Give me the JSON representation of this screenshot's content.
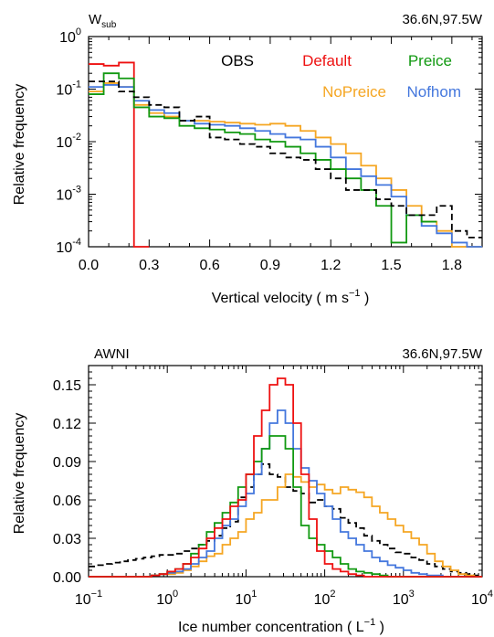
{
  "chart_data": [
    {
      "type": "line",
      "panel_label": "W",
      "panel_label_sub": "sub",
      "location": "36.6N,97.5W",
      "xlabel": "Vertical velocity ( m s",
      "xlabel_sup": "−1",
      "xlabel_tail": ")",
      "ylabel": "Relative frequency",
      "xlim": [
        0.0,
        1.95
      ],
      "ylim": [
        0.0001,
        1
      ],
      "yscale": "log",
      "x_ticks": [
        "0.0",
        "0.3",
        "0.6",
        "0.9",
        "1.2",
        "1.5",
        "1.8"
      ],
      "x_tick_values": [
        0.0,
        0.3,
        0.6,
        0.9,
        1.2,
        1.5,
        1.8
      ],
      "y_ticks": [
        {
          "base": "10",
          "exp": "0",
          "value": 1
        },
        {
          "base": "10",
          "exp": "-1",
          "value": 0.1
        },
        {
          "base": "10",
          "exp": "-2",
          "value": 0.01
        },
        {
          "base": "10",
          "exp": "-3",
          "value": 0.001
        },
        {
          "base": "10",
          "exp": "-4",
          "value": 0.0001
        }
      ],
      "legend": [
        {
          "name": "OBS",
          "color": "#000000",
          "dashed": true
        },
        {
          "name": "Default",
          "color": "#ee1111",
          "dashed": false
        },
        {
          "name": "Preice",
          "color": "#119911",
          "dashed": false
        },
        {
          "name": "NoPreice",
          "color": "#f5a623",
          "dashed": false
        },
        {
          "name": "Nofhom",
          "color": "#4477dd",
          "dashed": false
        }
      ],
      "bin_edges": [
        0.0,
        0.075,
        0.15,
        0.225,
        0.3,
        0.375,
        0.45,
        0.525,
        0.6,
        0.675,
        0.75,
        0.825,
        0.9,
        0.975,
        1.05,
        1.125,
        1.2,
        1.275,
        1.35,
        1.425,
        1.5,
        1.575,
        1.65,
        1.725,
        1.8,
        1.875,
        1.95
      ],
      "series": [
        {
          "name": "Default",
          "color": "#ee1111",
          "dashed": false,
          "values": [
            0.3,
            0.28,
            0.32,
            0.0001
          ]
        },
        {
          "name": "NoPreice",
          "color": "#f5a623",
          "dashed": false,
          "values": [
            0.09,
            0.13,
            0.11,
            0.05,
            0.035,
            0.03,
            0.025,
            0.025,
            0.024,
            0.023,
            0.022,
            0.021,
            0.022,
            0.02,
            0.016,
            0.012,
            0.009,
            0.006,
            0.0035,
            0.002,
            0.0012,
            0.0006,
            0.0003,
            0.0002,
            0.0001,
            0.0001
          ]
        },
        {
          "name": "Nofhom",
          "color": "#4477dd",
          "dashed": false,
          "values": [
            0.11,
            0.12,
            0.11,
            0.06,
            0.04,
            0.035,
            0.025,
            0.022,
            0.021,
            0.02,
            0.018,
            0.016,
            0.014,
            0.012,
            0.011,
            0.008,
            0.005,
            0.003,
            0.0022,
            0.0015,
            0.0009,
            0.0004,
            0.00025,
            0.00018,
            0.00012,
            0.0001
          ]
        },
        {
          "name": "Preice",
          "color": "#119911",
          "dashed": false,
          "values": [
            0.08,
            0.2,
            0.16,
            0.045,
            0.03,
            0.028,
            0.02,
            0.018,
            0.017,
            0.015,
            0.014,
            0.011,
            0.01,
            0.008,
            0.006,
            0.0045,
            0.003,
            0.002,
            0.0012,
            0.0006,
            0.00012,
            0.0004,
            0.0003
          ]
        },
        {
          "name": "OBS",
          "color": "#000000",
          "dashed": true,
          "values": [
            0.14,
            0.14,
            0.09,
            0.07,
            0.05,
            0.045,
            0.025,
            0.03,
            0.012,
            0.011,
            0.009,
            0.008,
            0.006,
            0.005,
            0.0045,
            0.003,
            0.002,
            0.0012,
            0.0012,
            0.0008,
            0.0006,
            0.0004,
            0.0004,
            0.0006,
            0.0002,
            0.00015
          ]
        }
      ]
    },
    {
      "type": "line",
      "panel_label": "AWNI",
      "location": "36.6N,97.5W",
      "xlabel": "Ice number concentration ( L",
      "xlabel_sup": "−1",
      "xlabel_tail": ")",
      "ylabel": "Relative frequency",
      "xscale": "log",
      "xlim": [
        0.1,
        10000
      ],
      "ylim": [
        0.0,
        0.165
      ],
      "x_ticks": [
        {
          "base": "10",
          "exp": "−1",
          "value": 0.1
        },
        {
          "base": "10",
          "exp": "0",
          "value": 1
        },
        {
          "base": "10",
          "exp": "1",
          "value": 10
        },
        {
          "base": "10",
          "exp": "2",
          "value": 100
        },
        {
          "base": "10",
          "exp": "3",
          "value": 1000
        },
        {
          "base": "10",
          "exp": "4",
          "value": 10000
        }
      ],
      "y_ticks": [
        "0.00",
        "0.03",
        "0.06",
        "0.09",
        "0.12",
        "0.15"
      ],
      "y_tick_values": [
        0.0,
        0.03,
        0.06,
        0.09,
        0.12,
        0.15
      ],
      "bin_edges_log10": [
        -1.0,
        -0.9,
        -0.8,
        -0.7,
        -0.6,
        -0.5,
        -0.4,
        -0.3,
        -0.2,
        -0.1,
        0.0,
        0.1,
        0.2,
        0.3,
        0.4,
        0.5,
        0.6,
        0.7,
        0.8,
        0.9,
        1.0,
        1.1,
        1.2,
        1.3,
        1.4,
        1.5,
        1.6,
        1.7,
        1.8,
        1.9,
        2.0,
        2.1,
        2.2,
        2.3,
        2.4,
        2.5,
        2.6,
        2.7,
        2.8,
        2.9,
        3.0,
        3.1,
        3.2,
        3.3,
        3.4,
        3.5,
        3.6,
        3.7,
        3.8,
        3.9,
        4.0
      ],
      "series": [
        {
          "name": "OBS",
          "color": "#000000",
          "dashed": true,
          "values": [
            0.008,
            0.009,
            0.01,
            0.011,
            0.012,
            0.013,
            0.014,
            0.015,
            0.016,
            0.017,
            0.017,
            0.018,
            0.02,
            0.022,
            0.025,
            0.028,
            0.032,
            0.038,
            0.043,
            0.062,
            0.07,
            0.08,
            0.088,
            0.08,
            0.078,
            0.07,
            0.067,
            0.065,
            0.058,
            0.06,
            0.055,
            0.053,
            0.046,
            0.042,
            0.038,
            0.032,
            0.028,
            0.025,
            0.022,
            0.019,
            0.018,
            0.015,
            0.013,
            0.01,
            0.008,
            0.006,
            0.004,
            0.003,
            0.002,
            0.001
          ]
        },
        {
          "name": "NoPreice",
          "color": "#f5a623",
          "dashed": false,
          "values": [
            0,
            0,
            0,
            0,
            0,
            0,
            0,
            0,
            0.001,
            0.002,
            0.002,
            0.003,
            0.005,
            0.008,
            0.012,
            0.016,
            0.018,
            0.025,
            0.03,
            0.035,
            0.045,
            0.05,
            0.06,
            0.06,
            0.07,
            0.08,
            0.078,
            0.074,
            0.07,
            0.072,
            0.068,
            0.065,
            0.07,
            0.068,
            0.066,
            0.062,
            0.055,
            0.05,
            0.045,
            0.04,
            0.035,
            0.03,
            0.025,
            0.018,
            0.012,
            0.008,
            0.005,
            0.002,
            0.001,
            0
          ]
        },
        {
          "name": "Nofhom",
          "color": "#4477dd",
          "dashed": false,
          "values": [
            0,
            0,
            0,
            0,
            0,
            0,
            0,
            0,
            0.001,
            0.002,
            0.003,
            0.004,
            0.006,
            0.01,
            0.015,
            0.02,
            0.03,
            0.04,
            0.045,
            0.055,
            0.065,
            0.08,
            0.1,
            0.12,
            0.13,
            0.12,
            0.1,
            0.085,
            0.075,
            0.065,
            0.055,
            0.045,
            0.035,
            0.03,
            0.025,
            0.02,
            0.015,
            0.012,
            0.009,
            0.007,
            0.005,
            0.003,
            0.002,
            0.001,
            0.001,
            0,
            0,
            0,
            0,
            0
          ]
        },
        {
          "name": "Preice",
          "color": "#119911",
          "dashed": false,
          "values": [
            0,
            0,
            0,
            0,
            0,
            0,
            0,
            0,
            0.001,
            0.002,
            0.004,
            0.006,
            0.01,
            0.018,
            0.025,
            0.035,
            0.042,
            0.05,
            0.058,
            0.07,
            0.08,
            0.09,
            0.1,
            0.11,
            0.11,
            0.1,
            0.07,
            0.04,
            0.03,
            0.025,
            0.02,
            0.015,
            0.01,
            0.006,
            0.004,
            0.003,
            0.002,
            0.001,
            0,
            0,
            0,
            0,
            0,
            0,
            0,
            0,
            0,
            0,
            0,
            0
          ]
        },
        {
          "name": "Default",
          "color": "#ee1111",
          "dashed": false,
          "values": [
            0,
            0,
            0,
            0,
            0,
            0,
            0,
            0,
            0.001,
            0.002,
            0.004,
            0.006,
            0.01,
            0.015,
            0.022,
            0.03,
            0.038,
            0.045,
            0.055,
            0.06,
            0.08,
            0.11,
            0.13,
            0.15,
            0.155,
            0.15,
            0.12,
            0.08,
            0.045,
            0.02,
            0.01,
            0.006,
            0.004,
            0.002,
            0.001,
            0,
            0,
            0,
            0,
            0,
            0,
            0,
            0,
            0,
            0,
            0,
            0,
            0,
            0,
            0
          ]
        }
      ]
    }
  ]
}
